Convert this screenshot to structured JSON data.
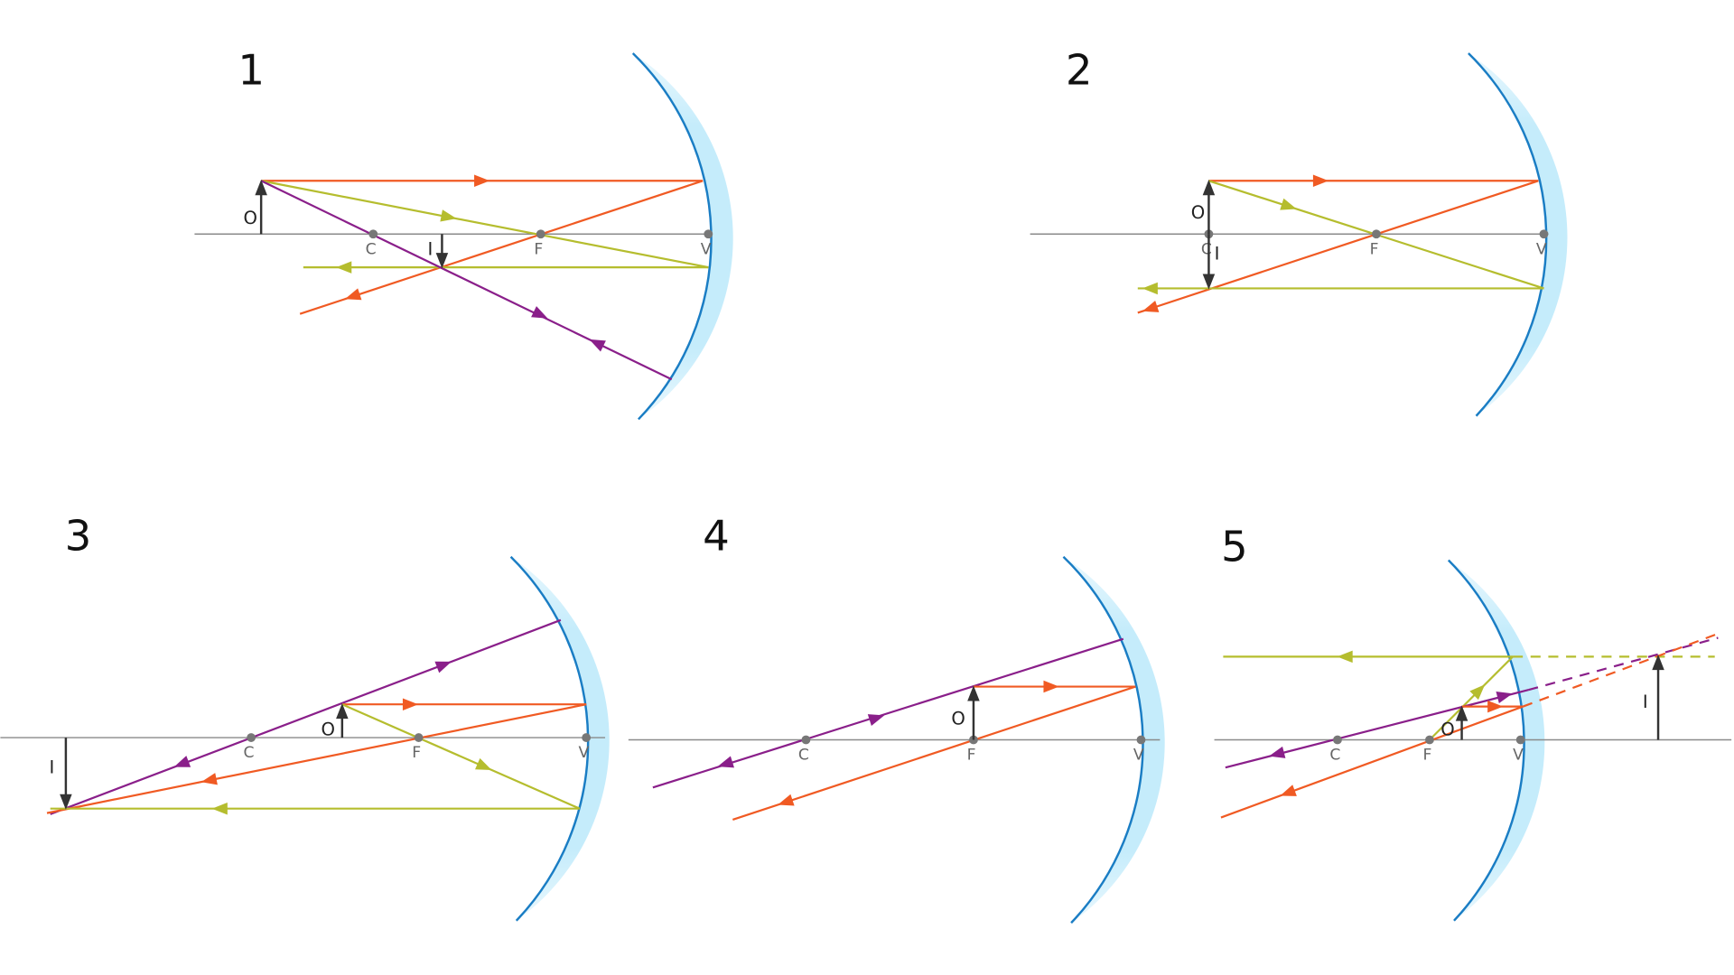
{
  "colors": {
    "ray_parallel": "#f05a23",
    "ray_focal": "#b5bd2e",
    "ray_center": "#8a1f8a",
    "mirror_line": "#1a7dc4",
    "mirror_body": "#c5ecfb",
    "axis": "#8a8a8a",
    "arrow_object": "#333333"
  },
  "panels": [
    {
      "number": "1",
      "labels": {
        "object": "O",
        "image": "I",
        "center": "C",
        "focus": "F",
        "vertex": "V"
      }
    },
    {
      "number": "2",
      "labels": {
        "object": "O",
        "image": "I",
        "center": "C",
        "focus": "F",
        "vertex": "V"
      }
    },
    {
      "number": "3",
      "labels": {
        "object": "O",
        "image": "I",
        "center": "C",
        "focus": "F",
        "vertex": "V"
      }
    },
    {
      "number": "4",
      "labels": {
        "object": "O",
        "center": "C",
        "focus": "F",
        "vertex": "V"
      }
    },
    {
      "number": "5",
      "labels": {
        "object": "O",
        "image": "I",
        "center": "C",
        "focus": "F",
        "vertex": "V"
      }
    }
  ]
}
